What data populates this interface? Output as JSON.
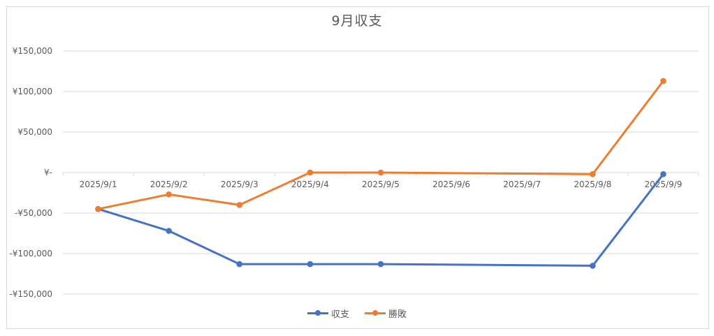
{
  "chart_data": {
    "type": "line",
    "title": "9月収支",
    "categories": [
      "2025/9/1",
      "2025/9/2",
      "2025/9/3",
      "2025/9/4",
      "2025/9/5",
      "2025/9/6",
      "2025/9/7",
      "2025/9/8",
      "2025/9/9"
    ],
    "series": [
      {
        "name": "収支",
        "color": "#4472C4",
        "values": [
          -45000,
          -72000,
          -113000,
          -113000,
          -113000,
          null,
          null,
          -115000,
          -2000
        ]
      },
      {
        "name": "勝敗",
        "color": "#ED7D31",
        "values": [
          -45000,
          -27000,
          -40000,
          0,
          0,
          null,
          null,
          -2000,
          113000
        ]
      }
    ],
    "ylim": [
      -150000,
      150000
    ],
    "yticks": [
      {
        "value": 150000,
        "label": "¥150,000"
      },
      {
        "value": 100000,
        "label": "¥100,000"
      },
      {
        "value": 50000,
        "label": "¥50,000"
      },
      {
        "value": 0,
        "label": "¥-"
      },
      {
        "value": -50000,
        "label": "-¥50,000"
      },
      {
        "value": -100000,
        "label": "-¥100,000"
      },
      {
        "value": -150000,
        "label": "-¥150,000"
      }
    ],
    "xlabel": "",
    "ylabel": "",
    "grid": true,
    "legend_position": "bottom"
  }
}
